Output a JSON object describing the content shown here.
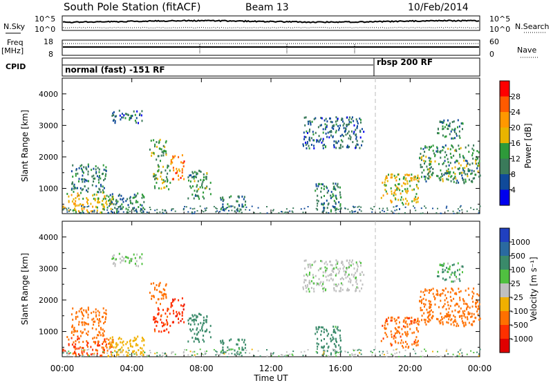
{
  "header": {
    "station": "South Pole Station (fitACF)",
    "beam": "Beam 13",
    "date": "10/Feb/2014"
  },
  "noise_panel": {
    "left_label": "N.Sky",
    "right_label": "N.Search",
    "left_ticks": [
      "10^5",
      "10^0"
    ],
    "right_ticks": [
      "10^5",
      "10^0"
    ]
  },
  "freq_panel": {
    "label_line1": "Freq",
    "label_line2": "[MHz]",
    "right_label": "Nave",
    "left_ticks": [
      "18",
      "8"
    ],
    "right_ticks": [
      "60",
      "0"
    ]
  },
  "cpid_panel": {
    "label": "CPID",
    "mode1": "normal (fast) -151 RF",
    "mode2": "rbsp 200 RF"
  },
  "power_panel": {
    "ylabel": "Slant Range [km]",
    "colorbar_label": "Power [dB]",
    "colorbar_ticks": [
      "28",
      "24",
      "20",
      "16",
      "12",
      "8",
      "4"
    ],
    "colorbar_colors": [
      "#ff0000",
      "#ff5a00",
      "#ff9800",
      "#e8b400",
      "#2e9a3a",
      "#3a7a5a",
      "#104a9a",
      "#0000ee"
    ]
  },
  "velocity_panel": {
    "ylabel": "Slant Range [km]",
    "colorbar_label": "Velocity [m s⁻¹]",
    "colorbar_ticks": [
      "1000",
      "500",
      "100",
      "25",
      "-25",
      "-100",
      "-500",
      "-1000"
    ],
    "colorbar_colors": [
      "#2040c0",
      "#2a6aa0",
      "#3a8a6a",
      "#50c040",
      "#c0c0c0",
      "#f0b000",
      "#ff7000",
      "#ff3000",
      "#e00000"
    ]
  },
  "x_axis": {
    "label": "Time UT",
    "ticks": [
      "00:00",
      "04:00",
      "08:00",
      "12:00",
      "16:00",
      "20:00",
      "00:00"
    ]
  },
  "chart_data": {
    "type": "heatmap",
    "title": "South Pole Station (fitACF)  Beam 13  10/Feb/2014",
    "xlabel": "Time UT",
    "ylabel": "Slant Range [km]",
    "xlim_hours": [
      0,
      24
    ],
    "ylim_km": [
      200,
      4500
    ],
    "mode_change_hour": 18.0,
    "y_ticks": [
      1000,
      2000,
      3000,
      4000
    ],
    "power_colorbar_db": [
      4,
      8,
      12,
      16,
      20,
      24,
      28
    ],
    "velocity_colorbar_ms": [
      -1000,
      -500,
      -100,
      -25,
      25,
      100,
      500,
      1000
    ],
    "regions": [
      {
        "t0": 0.0,
        "t1": 2.9,
        "r0": 250,
        "r1": 900,
        "power": 16,
        "velocity": -300
      },
      {
        "t0": 0.5,
        "t1": 2.5,
        "r0": 900,
        "r1": 1800,
        "power": 8,
        "velocity": -150
      },
      {
        "t0": 2.6,
        "t1": 4.8,
        "r0": 250,
        "r1": 900,
        "power": 8,
        "velocity": -50
      },
      {
        "t0": 2.8,
        "t1": 4.6,
        "r0": 3100,
        "r1": 3500,
        "power": 6,
        "velocity": 20
      },
      {
        "t0": 5.0,
        "t1": 6.0,
        "r0": 1900,
        "r1": 2600,
        "power": 12,
        "velocity": -200
      },
      {
        "t0": 5.2,
        "t1": 6.2,
        "r0": 1000,
        "r1": 1800,
        "power": 12,
        "velocity": -400
      },
      {
        "t0": 6.2,
        "t1": 7.0,
        "r0": 1300,
        "r1": 2100,
        "power": 22,
        "velocity": -600
      },
      {
        "t0": 7.2,
        "t1": 8.5,
        "r0": 700,
        "r1": 1600,
        "power": 10,
        "velocity": 150
      },
      {
        "t0": 9.0,
        "t1": 10.5,
        "r0": 300,
        "r1": 800,
        "power": 8,
        "velocity": 120
      },
      {
        "t0": 13.8,
        "t1": 17.3,
        "r0": 2300,
        "r1": 3300,
        "power": 6,
        "velocity": 10
      },
      {
        "t0": 14.5,
        "t1": 16.0,
        "r0": 300,
        "r1": 1200,
        "power": 8,
        "velocity": 130
      },
      {
        "t0": 18.3,
        "t1": 20.5,
        "r0": 500,
        "r1": 1500,
        "power": 16,
        "velocity": -250
      },
      {
        "t0": 20.5,
        "t1": 24.0,
        "r0": 1200,
        "r1": 2400,
        "power": 10,
        "velocity": -120
      },
      {
        "t0": 21.5,
        "t1": 23.0,
        "r0": 2600,
        "r1": 3200,
        "power": 8,
        "velocity": 60
      }
    ]
  }
}
